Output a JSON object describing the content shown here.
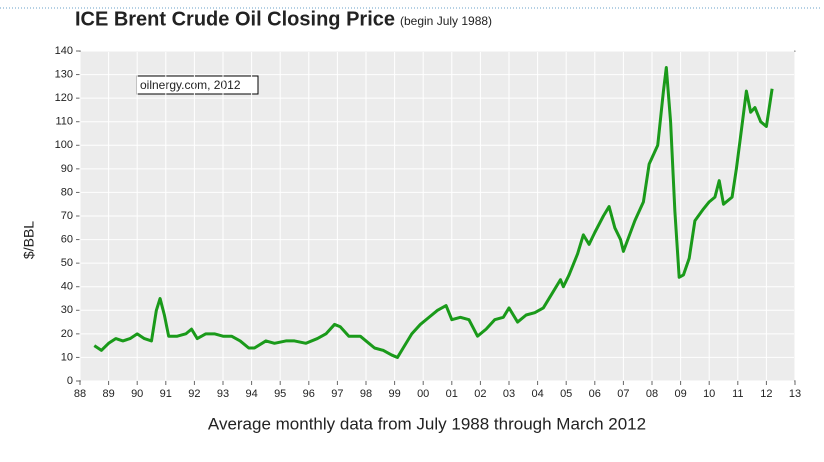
{
  "chart_data": {
    "type": "line",
    "title": "ICE Brent Crude Oil Closing Price",
    "subtitle": "(begin July 1988)",
    "ylabel": "$/BBL",
    "xlabel": "Average  monthly data from July 1988 through March 2012",
    "annotation": "oilnergy.com, 2012",
    "x": [
      1988.5,
      1988.75,
      1989.0,
      1989.25,
      1989.5,
      1989.75,
      1990.0,
      1990.25,
      1990.5,
      1990.67,
      1990.8,
      1990.95,
      1991.1,
      1991.4,
      1991.7,
      1991.9,
      1992.1,
      1992.4,
      1992.7,
      1993.0,
      1993.3,
      1993.6,
      1993.9,
      1994.1,
      1994.5,
      1994.8,
      1995.2,
      1995.5,
      1995.9,
      1996.3,
      1996.6,
      1996.9,
      1997.1,
      1997.4,
      1997.8,
      1998.0,
      1998.3,
      1998.6,
      1998.9,
      1999.1,
      1999.3,
      1999.6,
      1999.9,
      2000.2,
      2000.5,
      2000.8,
      2001.0,
      2001.3,
      2001.6,
      2001.9,
      2002.2,
      2002.5,
      2002.8,
      2003.0,
      2003.3,
      2003.6,
      2003.9,
      2004.2,
      2004.5,
      2004.8,
      2004.9,
      2005.1,
      2005.4,
      2005.6,
      2005.8,
      2006.0,
      2006.3,
      2006.5,
      2006.7,
      2006.9,
      2007.0,
      2007.4,
      2007.7,
      2007.9,
      2008.2,
      2008.4,
      2008.5,
      2008.65,
      2008.8,
      2008.95,
      2009.1,
      2009.3,
      2009.5,
      2009.8,
      2010.0,
      2010.2,
      2010.35,
      2010.5,
      2010.8,
      2010.95,
      2011.1,
      2011.3,
      2011.45,
      2011.6,
      2011.8,
      2012.0,
      2012.2
    ],
    "series": [
      {
        "name": "Brent",
        "color": "#1a9a1a",
        "values": [
          15,
          13,
          16,
          18,
          17,
          18,
          20,
          18,
          17,
          30,
          35,
          28,
          19,
          19,
          20,
          22,
          18,
          20,
          20,
          19,
          19,
          17,
          14,
          14,
          17,
          16,
          17,
          17,
          16,
          18,
          20,
          24,
          23,
          19,
          19,
          17,
          14,
          13,
          11,
          10,
          14,
          20,
          24,
          27,
          30,
          32,
          26,
          27,
          26,
          19,
          22,
          26,
          27,
          31,
          25,
          28,
          29,
          31,
          37,
          43,
          40,
          45,
          54,
          62,
          58,
          63,
          70,
          74,
          65,
          60,
          55,
          68,
          76,
          92,
          100,
          123,
          133,
          110,
          72,
          44,
          45,
          52,
          68,
          73,
          76,
          78,
          85,
          75,
          78,
          90,
          104,
          123,
          114,
          116,
          110,
          108,
          124
        ]
      }
    ],
    "xlim": [
      1988,
      2013
    ],
    "xticks": [
      {
        "value": 1988,
        "label": "88"
      },
      {
        "value": 1989,
        "label": "89"
      },
      {
        "value": 1990,
        "label": "90"
      },
      {
        "value": 1991,
        "label": "91"
      },
      {
        "value": 1992,
        "label": "92"
      },
      {
        "value": 1993,
        "label": "93"
      },
      {
        "value": 1994,
        "label": "94"
      },
      {
        "value": 1995,
        "label": "95"
      },
      {
        "value": 1996,
        "label": "96"
      },
      {
        "value": 1997,
        "label": "97"
      },
      {
        "value": 1998,
        "label": "98"
      },
      {
        "value": 1999,
        "label": "99"
      },
      {
        "value": 2000,
        "label": "00"
      },
      {
        "value": 2001,
        "label": "01"
      },
      {
        "value": 2002,
        "label": "02"
      },
      {
        "value": 2003,
        "label": "03"
      },
      {
        "value": 2004,
        "label": "04"
      },
      {
        "value": 2005,
        "label": "05"
      },
      {
        "value": 2006,
        "label": "06"
      },
      {
        "value": 2007,
        "label": "07"
      },
      {
        "value": 2008,
        "label": "08"
      },
      {
        "value": 2009,
        "label": "09"
      },
      {
        "value": 2010,
        "label": "10"
      },
      {
        "value": 2011,
        "label": "11"
      },
      {
        "value": 2012,
        "label": "12"
      },
      {
        "value": 2013,
        "label": "13"
      }
    ],
    "ylim": [
      0,
      140
    ],
    "yticks": [
      0,
      10,
      20,
      30,
      40,
      50,
      60,
      70,
      80,
      90,
      100,
      110,
      120,
      130,
      140
    ],
    "grid": true
  }
}
